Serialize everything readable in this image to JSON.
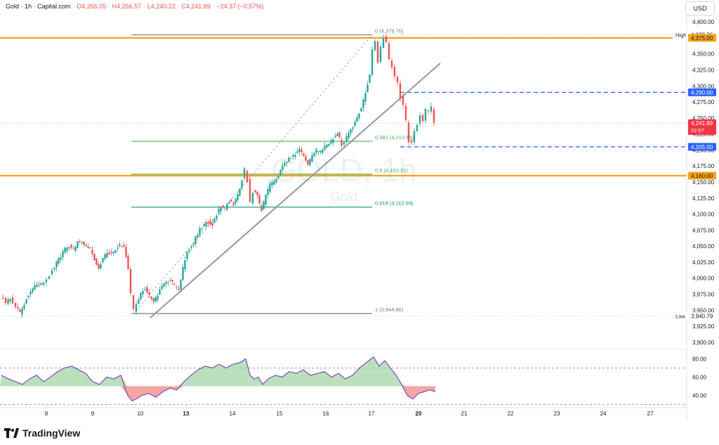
{
  "header": {
    "symbol": "Gold · 1h · Capital.com",
    "open": "O4,266.05",
    "high": "H4,266.57",
    "low": "L4,240.22",
    "close": "C4,241.89",
    "change": "−24.37 (−0.57%)"
  },
  "currency": "USD",
  "watermark": {
    "symbol": "GOLD, 1h",
    "name": "Gold"
  },
  "brand": "TradingView",
  "colors": {
    "up": "#26a69a",
    "down": "#ef5350",
    "level": "#f7a21b",
    "blue": "#2962ff",
    "fib": "#4caf50",
    "fib618": "#089981",
    "rsi": "#7e57c2"
  },
  "price_axis": {
    "ticks": [
      "4,400.00",
      "4,375.00",
      "4,350.00",
      "4,325.00",
      "4,300.00",
      "4,275.00",
      "4,250.00",
      "4,225.00",
      "4,200.00",
      "4,175.00",
      "4,150.00",
      "4,125.00",
      "4,100.00",
      "4,075.00",
      "4,050.00",
      "4,025.00",
      "4,000.00",
      "3,975.00",
      "3,950.00",
      "3,925.00",
      "3,900.00"
    ],
    "tick_values": [
      4400,
      4375,
      4350,
      4325,
      4300,
      4275,
      4250,
      4225,
      4200,
      4175,
      4150,
      4125,
      4100,
      4075,
      4050,
      4025,
      4000,
      3975,
      3950,
      3925,
      3900
    ],
    "badges": [
      {
        "label": "High",
        "value": "4,379.76",
        "price": 4379.76,
        "kind": "plain"
      },
      {
        "label": "",
        "value": "4,375.00",
        "price": 4375,
        "kind": "orange"
      },
      {
        "label": "",
        "value": "4,290.00",
        "price": 4290,
        "kind": "blue"
      },
      {
        "label": "",
        "value": "4,241.89",
        "price": 4241.89,
        "kind": "red",
        "sub": "02:57"
      },
      {
        "label": "",
        "value": "4,205.00",
        "price": 4205,
        "kind": "blue"
      },
      {
        "label": "",
        "value": "4,160.00",
        "price": 4160,
        "kind": "orange"
      },
      {
        "label": "Low",
        "value": "3,940.79",
        "price": 3940.79,
        "kind": "plain"
      }
    ]
  },
  "rsi_axis": {
    "ticks": [
      "80.00",
      "60.00",
      "40.00"
    ],
    "tick_values": [
      80,
      60,
      40
    ]
  },
  "time_axis": {
    "labels": [
      "8",
      "9",
      "10",
      "13",
      "14",
      "15",
      "16",
      "17",
      "20",
      "21",
      "22",
      "23",
      "24",
      "27"
    ],
    "bold": [
      "13",
      "20"
    ]
  },
  "fib": [
    {
      "label": "0 (4,379.76)",
      "price": 4379.76
    },
    {
      "label": "0.382 (4,213.68)",
      "price": 4213.68
    },
    {
      "label": "0.5 (4,162.31)",
      "price": 4162.31
    },
    {
      "label": "0.618 (4,110.99)",
      "price": 4110.99
    },
    {
      "label": "1 (3,944.86)",
      "price": 3944.86
    }
  ],
  "levels": [
    {
      "price": 4375,
      "kind": "orange"
    },
    {
      "price": 4160,
      "kind": "orange"
    },
    {
      "price": 4290,
      "kind": "blue"
    },
    {
      "price": 4205,
      "kind": "blue"
    }
  ],
  "chart_data": {
    "type": "candlestick",
    "symbol": "Gold",
    "timeframe": "1h",
    "x_labels": [
      "8",
      "9",
      "10",
      "13",
      "14",
      "15",
      "16",
      "17",
      "20",
      "21",
      "22",
      "23",
      "24",
      "27"
    ],
    "path": [
      [
        0,
        3972
      ],
      [
        8,
        3962
      ],
      [
        14,
        3968
      ],
      [
        22,
        3955
      ],
      [
        28,
        3945
      ],
      [
        34,
        3960
      ],
      [
        40,
        3975
      ],
      [
        46,
        3985
      ],
      [
        52,
        3990
      ],
      [
        58,
        3992
      ],
      [
        66,
        4000
      ],
      [
        74,
        4012
      ],
      [
        80,
        4025
      ],
      [
        86,
        4035
      ],
      [
        92,
        4045
      ],
      [
        98,
        4050
      ],
      [
        104,
        4045
      ],
      [
        110,
        4055
      ],
      [
        116,
        4058
      ],
      [
        122,
        4050
      ],
      [
        128,
        4045
      ],
      [
        134,
        4028
      ],
      [
        140,
        4015
      ],
      [
        146,
        4030
      ],
      [
        152,
        4040
      ],
      [
        158,
        4038
      ],
      [
        164,
        4045
      ],
      [
        170,
        4052
      ],
      [
        176,
        4050
      ],
      [
        182,
        4015
      ],
      [
        186,
        3975
      ],
      [
        190,
        3950
      ],
      [
        194,
        3960
      ],
      [
        200,
        3975
      ],
      [
        206,
        3985
      ],
      [
        212,
        3972
      ],
      [
        218,
        3962
      ],
      [
        224,
        3975
      ],
      [
        230,
        3990
      ],
      [
        236,
        3995
      ],
      [
        242,
        3998
      ],
      [
        248,
        3988
      ],
      [
        254,
        3982
      ],
      [
        260,
        4015
      ],
      [
        266,
        4040
      ],
      [
        272,
        4050
      ],
      [
        278,
        4062
      ],
      [
        284,
        4075
      ],
      [
        290,
        4082
      ],
      [
        296,
        4088
      ],
      [
        302,
        4085
      ],
      [
        308,
        4100
      ],
      [
        314,
        4112
      ],
      [
        320,
        4108
      ],
      [
        326,
        4120
      ],
      [
        332,
        4115
      ],
      [
        338,
        4130
      ],
      [
        344,
        4155
      ],
      [
        348,
        4170
      ],
      [
        352,
        4152
      ],
      [
        356,
        4118
      ],
      [
        360,
        4135
      ],
      [
        366,
        4128
      ],
      [
        372,
        4105
      ],
      [
        378,
        4130
      ],
      [
        384,
        4145
      ],
      [
        390,
        4150
      ],
      [
        396,
        4160
      ],
      [
        402,
        4175
      ],
      [
        408,
        4182
      ],
      [
        414,
        4188
      ],
      [
        420,
        4195
      ],
      [
        426,
        4202
      ],
      [
        432,
        4190
      ],
      [
        438,
        4178
      ],
      [
        444,
        4192
      ],
      [
        450,
        4200
      ],
      [
        456,
        4198
      ],
      [
        462,
        4205
      ],
      [
        468,
        4210
      ],
      [
        474,
        4218
      ],
      [
        480,
        4228
      ],
      [
        486,
        4208
      ],
      [
        490,
        4213
      ],
      [
        496,
        4225
      ],
      [
        502,
        4235
      ],
      [
        508,
        4250
      ],
      [
        514,
        4265
      ],
      [
        520,
        4290
      ],
      [
        526,
        4320
      ],
      [
        530,
        4355
      ],
      [
        534,
        4372
      ],
      [
        538,
        4338
      ],
      [
        542,
        4362
      ],
      [
        546,
        4375
      ],
      [
        550,
        4368
      ],
      [
        554,
        4342
      ],
      [
        558,
        4330
      ],
      [
        562,
        4315
      ],
      [
        566,
        4305
      ],
      [
        570,
        4282
      ],
      [
        574,
        4268
      ],
      [
        578,
        4245
      ],
      [
        582,
        4215
      ],
      [
        586,
        4210
      ],
      [
        590,
        4232
      ],
      [
        594,
        4240
      ],
      [
        598,
        4255
      ],
      [
        602,
        4248
      ],
      [
        606,
        4262
      ],
      [
        610,
        4258
      ],
      [
        614,
        4266
      ],
      [
        618,
        4242
      ]
    ],
    "rsi_path": [
      [
        0,
        62
      ],
      [
        10,
        58
      ],
      [
        20,
        55
      ],
      [
        30,
        52
      ],
      [
        40,
        58
      ],
      [
        50,
        62
      ],
      [
        60,
        55
      ],
      [
        70,
        60
      ],
      [
        80,
        66
      ],
      [
        90,
        70
      ],
      [
        100,
        72
      ],
      [
        110,
        68
      ],
      [
        120,
        64
      ],
      [
        130,
        55
      ],
      [
        140,
        52
      ],
      [
        150,
        60
      ],
      [
        160,
        58
      ],
      [
        170,
        62
      ],
      [
        180,
        40
      ],
      [
        186,
        34
      ],
      [
        192,
        36
      ],
      [
        200,
        40
      ],
      [
        210,
        42
      ],
      [
        220,
        38
      ],
      [
        230,
        44
      ],
      [
        240,
        48
      ],
      [
        250,
        46
      ],
      [
        260,
        55
      ],
      [
        270,
        62
      ],
      [
        280,
        68
      ],
      [
        290,
        72
      ],
      [
        300,
        70
      ],
      [
        310,
        74
      ],
      [
        320,
        70
      ],
      [
        330,
        74
      ],
      [
        340,
        76
      ],
      [
        348,
        80
      ],
      [
        354,
        62
      ],
      [
        360,
        58
      ],
      [
        366,
        60
      ],
      [
        372,
        52
      ],
      [
        380,
        58
      ],
      [
        390,
        62
      ],
      [
        400,
        60
      ],
      [
        410,
        66
      ],
      [
        420,
        64
      ],
      [
        430,
        68
      ],
      [
        440,
        62
      ],
      [
        450,
        64
      ],
      [
        460,
        66
      ],
      [
        470,
        60
      ],
      [
        480,
        64
      ],
      [
        490,
        58
      ],
      [
        500,
        62
      ],
      [
        510,
        70
      ],
      [
        520,
        76
      ],
      [
        530,
        82
      ],
      [
        538,
        72
      ],
      [
        546,
        78
      ],
      [
        554,
        70
      ],
      [
        562,
        62
      ],
      [
        570,
        52
      ],
      [
        578,
        40
      ],
      [
        586,
        36
      ],
      [
        594,
        42
      ],
      [
        602,
        44
      ],
      [
        610,
        46
      ],
      [
        618,
        44
      ]
    ],
    "rsi_levels": [
      70,
      30
    ],
    "y_range": [
      3890,
      4410
    ],
    "rsi_range": [
      28,
      88
    ],
    "last_price": 4241.89
  }
}
